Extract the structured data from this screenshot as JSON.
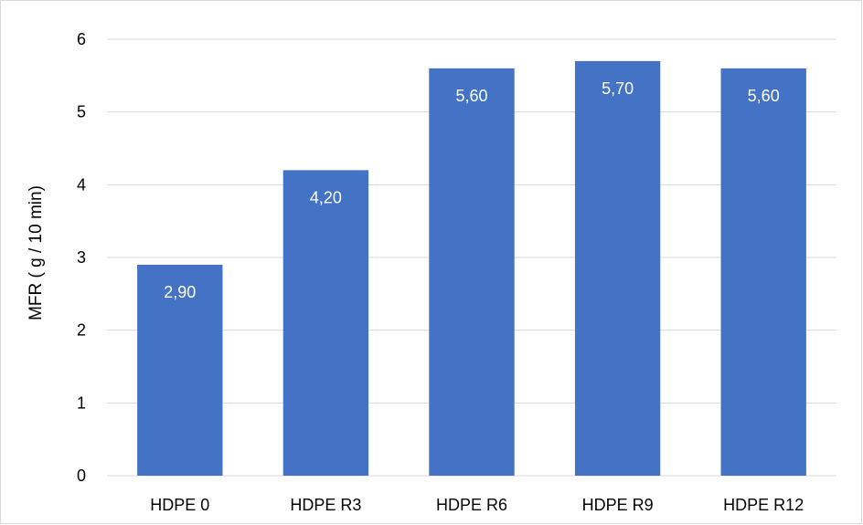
{
  "chart_data": {
    "type": "bar",
    "title": "",
    "xlabel": "",
    "ylabel": "MFR ( g / 10 min)",
    "categories": [
      "HDPE 0",
      "HDPE R3",
      "HDPE R6",
      "HDPE R9",
      "HDPE R12"
    ],
    "values": [
      2.9,
      4.2,
      5.6,
      5.7,
      5.6
    ],
    "data_labels": [
      "2,90",
      "4,20",
      "5,60",
      "5,70",
      "5,60"
    ],
    "ylim": [
      0,
      6
    ],
    "yticks": [
      "0",
      "1",
      "2",
      "3",
      "4",
      "5",
      "6"
    ],
    "grid": true,
    "legend": "none",
    "bar_color": "#4472c4",
    "gridline_color": "#d9d9d9",
    "data_label_color": "#ffffff"
  }
}
